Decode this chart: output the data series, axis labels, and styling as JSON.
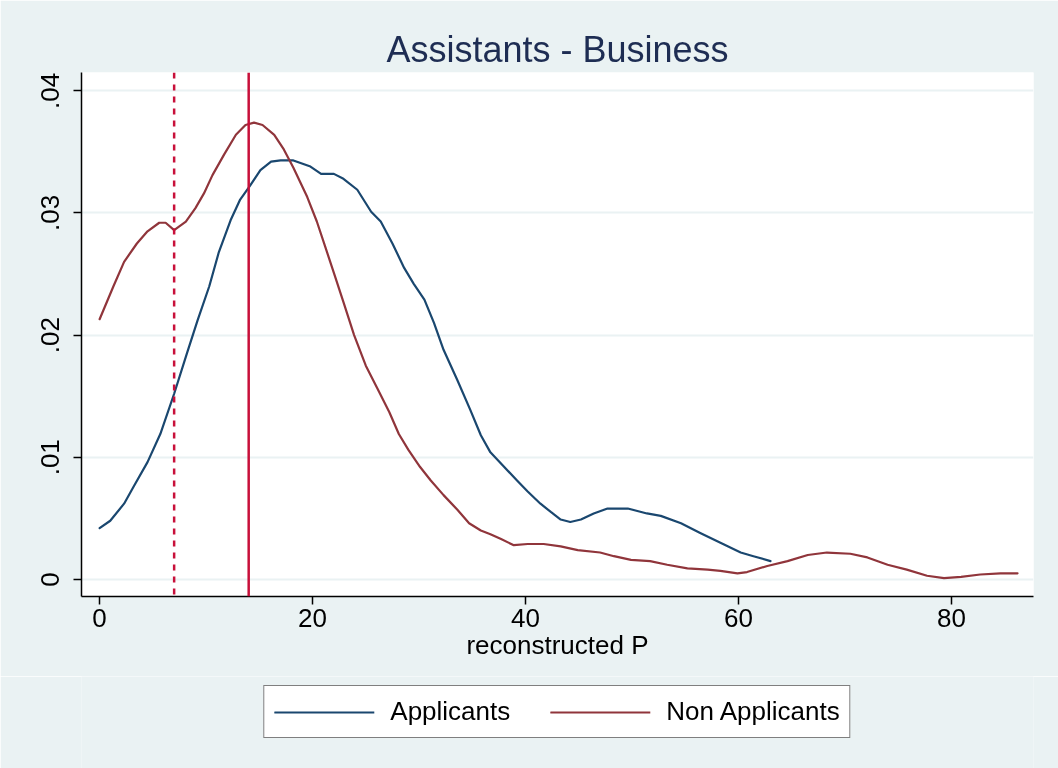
{
  "chart_data": {
    "type": "line",
    "title": "Assistants - Business",
    "xlabel": "reconstructed P",
    "xlim": [
      -1.7,
      87.7
    ],
    "ylim": [
      -0.0014,
      0.0415
    ],
    "xticks": [
      0,
      20,
      40,
      60,
      80
    ],
    "yticks": [
      0,
      {
        "value": 0.01,
        "label": ".01"
      },
      {
        "value": 0.02,
        "label": ".02"
      },
      {
        "value": 0.03,
        "label": ".03"
      },
      {
        "value": 0.04,
        "label": ".04"
      }
    ],
    "grid": "y",
    "legend": "bottom",
    "ref_lines": [
      {
        "axis": "x",
        "value": 7,
        "color": "#c8103a",
        "line_style": "dashed"
      },
      {
        "axis": "x",
        "value": 14,
        "color": "#c8103a",
        "line_style": "solid"
      }
    ],
    "series": [
      {
        "name": "Applicants",
        "color": "#1a476f",
        "x": [
          0,
          1.0,
          2.3,
          3.2,
          4.5,
          5.7,
          7.0,
          8.2,
          9.2,
          10.3,
          11.2,
          12.3,
          13.2,
          14.1,
          15.1,
          16.1,
          17.0,
          18.2,
          19.8,
          20.8,
          22.0,
          22.9,
          24.2,
          25.5,
          26.4,
          27.5,
          28.6,
          29.5,
          30.5,
          31.4,
          32.3,
          33.6,
          34.8,
          35.8,
          36.7,
          38.0,
          39.2,
          40.2,
          41.4,
          42.4,
          43.3,
          44.2,
          45.2,
          46.4,
          47.7,
          49.6,
          51.4,
          52.7,
          54.6,
          56.4,
          58.3,
          60.2,
          61.4,
          63.0
        ],
        "values": [
          0.0042,
          0.0048,
          0.0062,
          0.0076,
          0.0096,
          0.0119,
          0.0152,
          0.0185,
          0.0212,
          0.024,
          0.0268,
          0.0294,
          0.0311,
          0.0322,
          0.0335,
          0.0342,
          0.0343,
          0.0343,
          0.0338,
          0.0332,
          0.0332,
          0.0328,
          0.0319,
          0.0301,
          0.0293,
          0.0275,
          0.0255,
          0.0242,
          0.0229,
          0.021,
          0.0188,
          0.0163,
          0.0139,
          0.0118,
          0.0104,
          0.0092,
          0.0081,
          0.0072,
          0.0062,
          0.0055,
          0.0049,
          0.0047,
          0.0049,
          0.0054,
          0.0058,
          0.0058,
          0.0054,
          0.0052,
          0.0046,
          0.0038,
          0.003,
          0.0022,
          0.0019,
          0.0015
        ]
      },
      {
        "name": "Non Applicants",
        "color": "#90353b",
        "x": [
          0,
          1.3,
          2.3,
          3.5,
          4.5,
          5.6,
          6.2,
          7.0,
          8.1,
          9.0,
          9.8,
          10.6,
          11.7,
          12.8,
          13.7,
          14.5,
          15.3,
          16.4,
          17.3,
          18.2,
          19.5,
          20.4,
          21.2,
          22.0,
          22.9,
          23.9,
          25.0,
          26.1,
          27.2,
          28.1,
          29.0,
          30.1,
          31.1,
          32.3,
          33.6,
          34.7,
          35.8,
          36.7,
          37.7,
          38.9,
          40.2,
          41.7,
          43.3,
          44.9,
          47.0,
          48.3,
          49.9,
          51.7,
          53.3,
          55.2,
          57.1,
          58.3,
          59.9,
          60.8,
          62.7,
          64.6,
          66.5,
          68.3,
          70.5,
          72.1,
          74.0,
          75.8,
          77.7,
          79.3,
          80.9,
          82.7,
          84.6,
          86.2
        ],
        "values": [
          0.0213,
          0.024,
          0.026,
          0.0275,
          0.0285,
          0.0292,
          0.0292,
          0.0286,
          0.0293,
          0.0304,
          0.0316,
          0.0331,
          0.0348,
          0.0364,
          0.0372,
          0.0374,
          0.0372,
          0.0364,
          0.0352,
          0.0337,
          0.0313,
          0.0293,
          0.0272,
          0.0251,
          0.0227,
          0.02,
          0.0175,
          0.0156,
          0.0137,
          0.0119,
          0.0106,
          0.0092,
          0.0081,
          0.0069,
          0.0057,
          0.0046,
          0.004,
          0.0037,
          0.0033,
          0.0028,
          0.0029,
          0.0029,
          0.0027,
          0.0024,
          0.0022,
          0.0019,
          0.0016,
          0.0015,
          0.0012,
          0.0009,
          0.0008,
          0.0007,
          0.0005,
          0.0006,
          0.0011,
          0.0015,
          0.002,
          0.0022,
          0.0021,
          0.0018,
          0.0012,
          0.0008,
          0.0003,
          0.0001,
          0.0002,
          0.0004,
          0.0005,
          0.0005
        ]
      }
    ]
  }
}
